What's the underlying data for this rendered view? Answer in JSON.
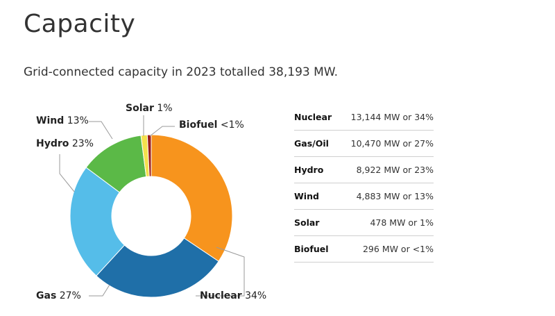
{
  "page": {
    "title": "Capacity",
    "subtitle": "Grid-connected capacity in 2023 totalled 38,193 MW."
  },
  "chart_data": {
    "type": "pie",
    "variant": "donut",
    "slices": [
      {
        "name": "Nuclear",
        "value": 13144,
        "pct_label": "34%",
        "color": "#f7941d"
      },
      {
        "name": "Gas",
        "value": 10470,
        "pct_label": "27%",
        "color": "#1f6fa8"
      },
      {
        "name": "Hydro",
        "value": 8922,
        "pct_label": "23%",
        "color": "#55bde9"
      },
      {
        "name": "Wind",
        "value": 4883,
        "pct_label": "13%",
        "color": "#5bb947"
      },
      {
        "name": "Solar",
        "value": 478,
        "pct_label": "1%",
        "color": "#f4e04d"
      },
      {
        "name": "Biofuel",
        "value": 296,
        "pct_label": "<1%",
        "color": "#9b1c1c"
      }
    ]
  },
  "table": {
    "rows": [
      {
        "source": "Nuclear",
        "value": "13,144 MW or 34%"
      },
      {
        "source": "Gas/Oil",
        "value": "10,470 MW or 27%"
      },
      {
        "source": "Hydro",
        "value": "8,922 MW or 23%"
      },
      {
        "source": "Wind",
        "value": "4,883 MW or 13%"
      },
      {
        "source": "Solar",
        "value": "478 MW or 1%"
      },
      {
        "source": "Biofuel",
        "value": "296 MW or <1%"
      }
    ]
  }
}
